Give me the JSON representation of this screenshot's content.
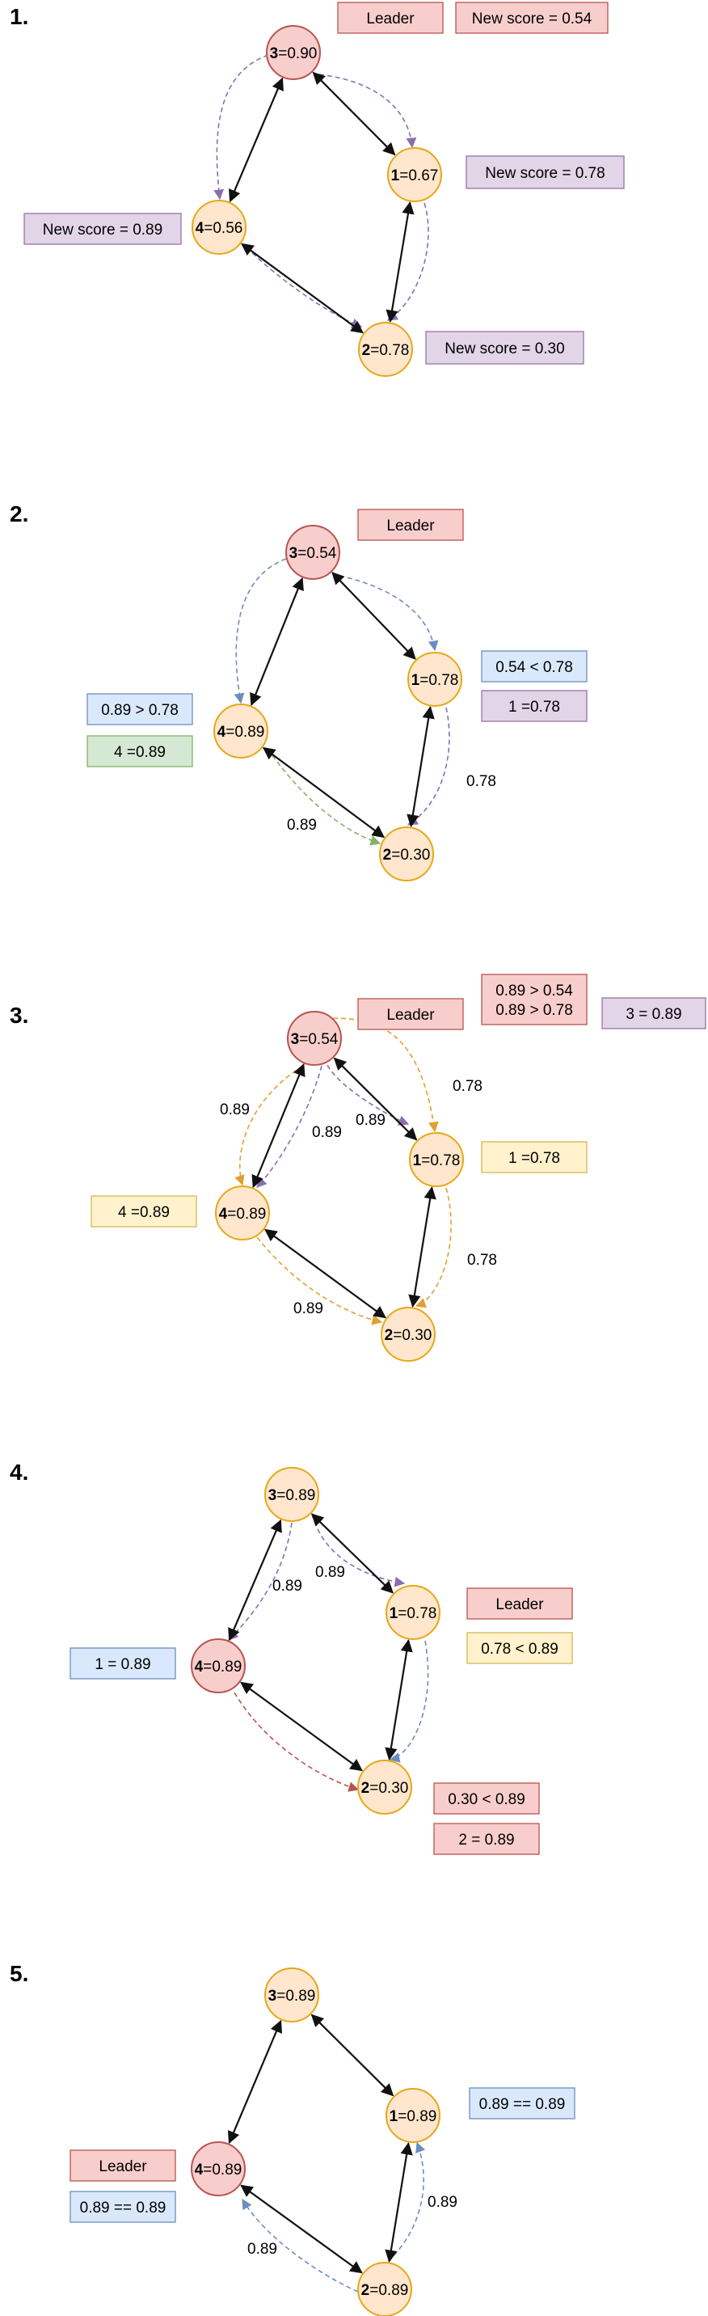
{
  "steps": [
    {
      "number": "1.",
      "nodes": [
        {
          "id": "3",
          "value": "=0.90",
          "role": "leader"
        },
        {
          "id": "1",
          "value": "=0.67",
          "role": "follower"
        },
        {
          "id": "4",
          "value": "=0.56",
          "role": "follower"
        },
        {
          "id": "2",
          "value": "=0.78",
          "role": "follower"
        }
      ],
      "labels": [
        {
          "name": "leader-tag",
          "text": "Leader",
          "color": "red"
        },
        {
          "name": "new-score-3",
          "text": "New score = 0.54",
          "color": "red"
        },
        {
          "name": "new-score-1",
          "text": "New score = 0.78",
          "color": "purple"
        },
        {
          "name": "new-score-4",
          "text": "New score = 0.89",
          "color": "purple"
        },
        {
          "name": "new-score-2",
          "text": "New score = 0.30",
          "color": "purple"
        }
      ],
      "edge_texts": []
    },
    {
      "number": "2.",
      "nodes": [
        {
          "id": "3",
          "value": "=0.54",
          "role": "leader"
        },
        {
          "id": "1",
          "value": "=0.78",
          "role": "follower"
        },
        {
          "id": "4",
          "value": "=0.89",
          "role": "follower"
        },
        {
          "id": "2",
          "value": "=0.30",
          "role": "follower"
        }
      ],
      "labels": [
        {
          "name": "leader-tag",
          "text": "Leader",
          "color": "red"
        },
        {
          "name": "compare-1",
          "text": "0.54 < 0.78",
          "color": "blue"
        },
        {
          "name": "assign-1",
          "text": "1 =0.78",
          "color": "purple"
        },
        {
          "name": "compare-4",
          "text": "0.89 > 0.78",
          "color": "blue"
        },
        {
          "name": "assign-4",
          "text": "4 =0.89",
          "color": "green"
        }
      ],
      "edge_texts": [
        "0.78",
        "0.89"
      ]
    },
    {
      "number": "3.",
      "nodes": [
        {
          "id": "3",
          "value": "=0.54",
          "role": "leader"
        },
        {
          "id": "1",
          "value": "=0.78",
          "role": "follower"
        },
        {
          "id": "4",
          "value": "=0.89",
          "role": "follower"
        },
        {
          "id": "2",
          "value": "=0.30",
          "role": "follower"
        }
      ],
      "labels": [
        {
          "name": "leader-tag",
          "text": "Leader",
          "color": "red"
        },
        {
          "name": "compare-3",
          "text": "0.89 > 0.54\n0.89 > 0.78",
          "color": "red"
        },
        {
          "name": "assign-3",
          "text": "3 = 0.89",
          "color": "purple"
        },
        {
          "name": "assign-1",
          "text": "1 =0.78",
          "color": "yellow"
        },
        {
          "name": "assign-4",
          "text": "4 =0.89",
          "color": "yellow"
        }
      ],
      "edge_texts": [
        "0.89",
        "0.89",
        "0.89",
        "0.78",
        "0.78",
        "0.89"
      ]
    },
    {
      "number": "4.",
      "nodes": [
        {
          "id": "3",
          "value": "=0.89",
          "role": "follower"
        },
        {
          "id": "1",
          "value": "=0.78",
          "role": "follower"
        },
        {
          "id": "4",
          "value": "=0.89",
          "role": "leader"
        },
        {
          "id": "2",
          "value": "=0.30",
          "role": "follower"
        }
      ],
      "labels": [
        {
          "name": "leader-tag",
          "text": "Leader",
          "color": "red"
        },
        {
          "name": "compare-1",
          "text": "0.78 < 0.89",
          "color": "yellow"
        },
        {
          "name": "assign-1",
          "text": "1 = 0.89",
          "color": "blue"
        },
        {
          "name": "compare-2",
          "text": "0.30 < 0.89",
          "color": "red"
        },
        {
          "name": "assign-2",
          "text": "2 = 0.89",
          "color": "red"
        }
      ],
      "edge_texts": [
        "0.89",
        "0.89"
      ]
    },
    {
      "number": "5.",
      "nodes": [
        {
          "id": "3",
          "value": "=0.89",
          "role": "follower"
        },
        {
          "id": "1",
          "value": "=0.89",
          "role": "follower"
        },
        {
          "id": "4",
          "value": "=0.89",
          "role": "leader"
        },
        {
          "id": "2",
          "value": "=0.89",
          "role": "follower"
        }
      ],
      "labels": [
        {
          "name": "compare-1",
          "text": "0.89 == 0.89",
          "color": "blue"
        },
        {
          "name": "leader-tag",
          "text": "Leader",
          "color": "red"
        },
        {
          "name": "compare-4",
          "text": "0.89 == 0.89",
          "color": "blue"
        }
      ],
      "edge_texts": [
        "0.89",
        "0.89"
      ]
    }
  ],
  "palette": {
    "leader_fill": "#f8cecc",
    "leader_stroke": "#b85450",
    "follower_fill": "#ffe6cc",
    "follower_stroke": "#e6a817",
    "red_fill": "#f8cecc",
    "red_stroke": "#b85450",
    "purple_fill": "#e1d5e7",
    "purple_stroke": "#9673a6",
    "blue_fill": "#dae8fc",
    "blue_stroke": "#6c8ebf",
    "green_fill": "#d5e8d4",
    "green_stroke": "#82b366",
    "yellow_fill": "#fff2cc",
    "yellow_stroke": "#d6b656",
    "dash_purple": "#8a6fb0",
    "dash_blue": "#6c8ebf",
    "dash_green": "#82b366",
    "dash_orange": "#e0a030",
    "dash_red": "#b85450"
  }
}
